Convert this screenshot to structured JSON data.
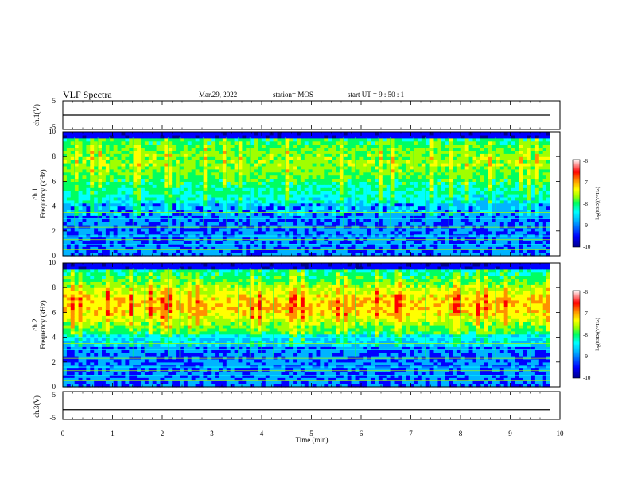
{
  "header": {
    "title": "VLF Spectra",
    "date": "Mar.29, 2022",
    "station": "station= MOS",
    "start_ut": "start  UT =   9 : 50 : 1"
  },
  "colors": {
    "colormap": [
      "#00008c",
      "#0000ff",
      "#00b4ff",
      "#00ffff",
      "#00ff60",
      "#a0ff00",
      "#ffff00",
      "#ff9000",
      "#ff0000",
      "#ffffff"
    ],
    "trace": "#000000"
  },
  "chart_data": [
    {
      "type": "line",
      "name": "ch1-waveform",
      "ylabel": "ch.1(V)",
      "ylim": [
        -5,
        5
      ],
      "yticks": [
        "5",
        "-5"
      ],
      "x": [
        0,
        10
      ],
      "y": [
        0,
        0
      ],
      "xlim": [
        0,
        10
      ]
    },
    {
      "type": "heatmap",
      "name": "ch1-spectrogram",
      "ylabel": "ch.1\nFrequency (kHz)",
      "ylim": [
        0,
        10
      ],
      "yticks": [
        "0",
        "2",
        "4",
        "6",
        "8",
        "10"
      ],
      "xlim": [
        0,
        10
      ],
      "data_end_min": 9.8,
      "colorbar": {
        "label": "log(PSD)(V²/Hz)",
        "range": [
          -10,
          -6
        ],
        "ticks": [
          "-6",
          "-7",
          "-8",
          "-9",
          "-10"
        ]
      }
    },
    {
      "type": "heatmap",
      "name": "ch2-spectrogram",
      "ylabel": "ch.2\nFrequency (kHz)",
      "ylim": [
        0,
        10
      ],
      "yticks": [
        "0",
        "2",
        "4",
        "6",
        "8",
        "10"
      ],
      "xlim": [
        0,
        10
      ],
      "data_end_min": 9.8,
      "colorbar": {
        "label": "log(PSD)(V²/Hz)",
        "range": [
          -10,
          -6
        ],
        "ticks": [
          "-6",
          "-7",
          "-8",
          "-9",
          "-10"
        ]
      }
    },
    {
      "type": "line",
      "name": "ch3-waveform",
      "ylabel": "ch.3(V)",
      "ylim": [
        -5,
        5
      ],
      "yticks": [
        "5",
        "-5"
      ],
      "x": [
        0,
        10
      ],
      "y": [
        -1.5,
        -1.5
      ],
      "xlim": [
        0,
        10
      ]
    }
  ],
  "xaxis": {
    "label": "Time (min)",
    "ticks": [
      "0",
      "1",
      "2",
      "3",
      "4",
      "5",
      "6",
      "7",
      "8",
      "9",
      "10"
    ],
    "range": [
      0,
      10
    ]
  }
}
